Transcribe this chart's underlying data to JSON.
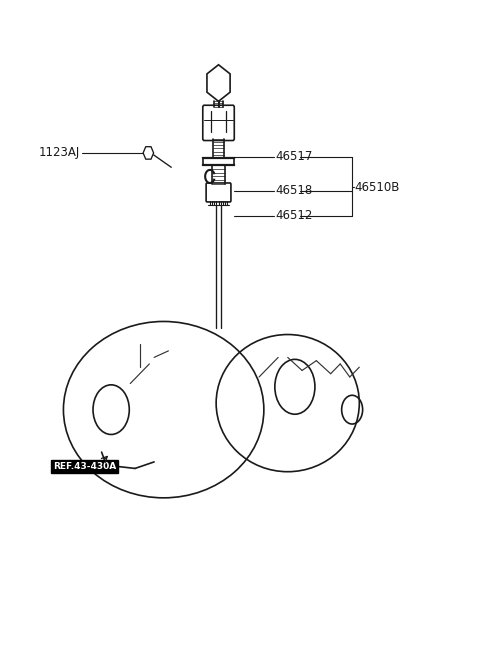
{
  "background_color": "#ffffff",
  "line_color": "#1a1a1a",
  "label_color": "#1a1a1a",
  "fig_width": 4.8,
  "fig_height": 6.56,
  "dpi": 100,
  "label_1123AJ": "1123AJ",
  "label_46517": "46517",
  "label_46518": "46518",
  "label_46512": "46512",
  "label_46510B": "46510B",
  "label_ref": "REF.43-430A",
  "label_font": 8.5,
  "ref_font": 6.5
}
